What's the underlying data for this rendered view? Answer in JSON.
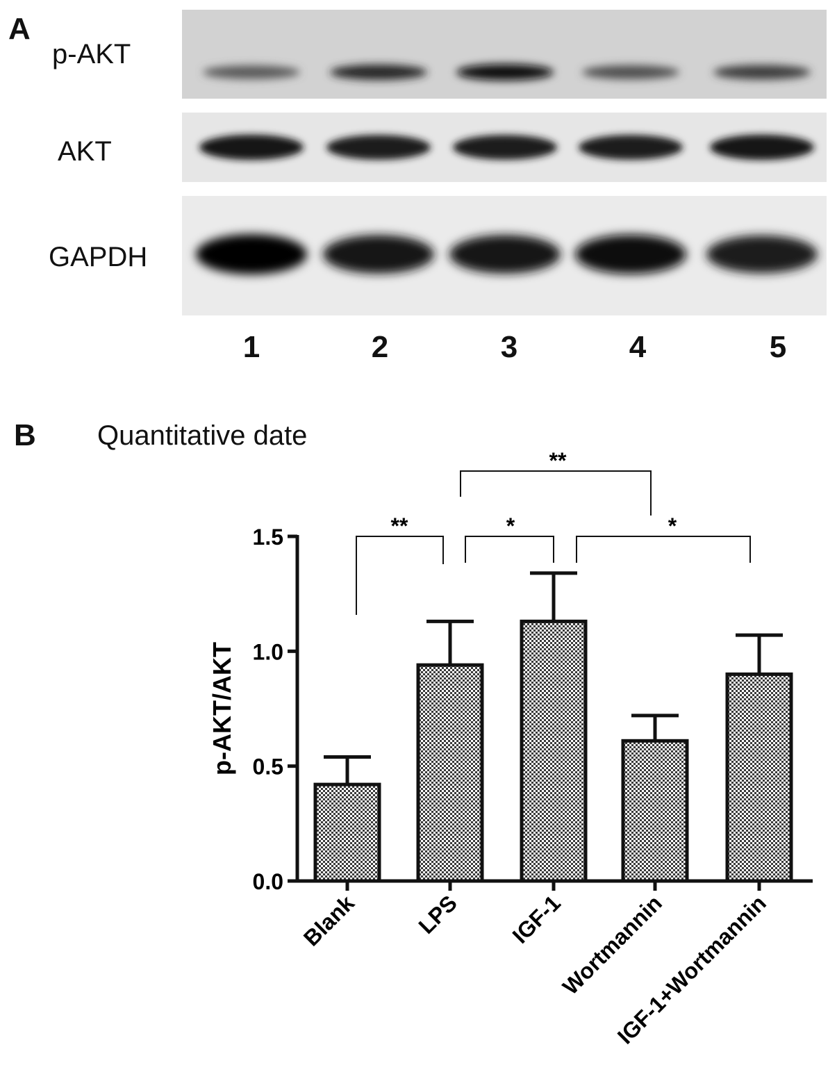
{
  "panel_a": {
    "letter": "A",
    "rows": [
      {
        "label": "p-AKT",
        "intensities": [
          0.55,
          0.8,
          0.95,
          0.6,
          0.7
        ]
      },
      {
        "label": "AKT",
        "intensities": [
          0.9,
          0.85,
          0.85,
          0.85,
          0.9
        ]
      },
      {
        "label": "GAPDH",
        "intensities": [
          1.0,
          0.9,
          0.9,
          0.95,
          0.85
        ]
      }
    ],
    "lanes": [
      "1",
      "2",
      "3",
      "4",
      "5"
    ]
  },
  "panel_b": {
    "letter": "B",
    "title": "Quantitative date"
  },
  "chart_data": {
    "type": "bar",
    "categories": [
      "Blank",
      "LPS",
      "IGF-1",
      "Wortmannin",
      "IGF-1+Wortmannin"
    ],
    "values": [
      0.42,
      0.94,
      1.13,
      0.61,
      0.9
    ],
    "errors": [
      0.12,
      0.19,
      0.21,
      0.11,
      0.17
    ],
    "ylabel": "p-AKT/AKT",
    "ylim": [
      0,
      1.5
    ],
    "yticks": [
      0.0,
      0.5,
      1.0,
      1.5
    ],
    "ytick_labels": [
      "0.0",
      "0.5",
      "1.0",
      "1.5"
    ],
    "bar_fill": "crosshatch",
    "significance": [
      {
        "from": 0,
        "to": 1,
        "label": "**"
      },
      {
        "from": 1,
        "to": 2,
        "label": "*"
      },
      {
        "from": 2,
        "to": 4,
        "label": "*"
      },
      {
        "from": 1,
        "to": 3,
        "label": "**"
      }
    ]
  }
}
